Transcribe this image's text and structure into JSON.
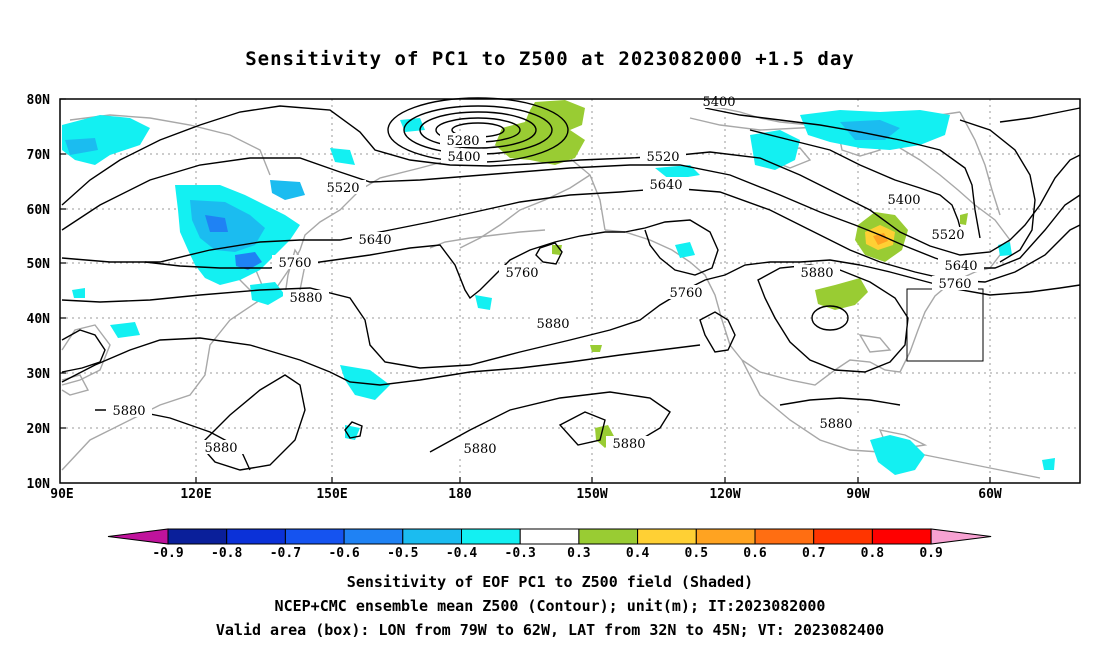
{
  "title": "Sensitivity of PC1 to Z500 at 2023082000 +1.5 day",
  "lat_ticks": [
    "80N",
    "70N",
    "60N",
    "50N",
    "40N",
    "30N",
    "20N",
    "10N"
  ],
  "lon_ticks": [
    "90E",
    "120E",
    "150E",
    "180",
    "150W",
    "120W",
    "90W",
    "60W"
  ],
  "contour_labels": [
    "5400",
    "5280",
    "5400",
    "5520",
    "5520",
    "5640",
    "5640",
    "5400",
    "5520",
    "5640",
    "5760",
    "5760",
    "5760",
    "5880",
    "5880",
    "5760",
    "5880",
    "5880",
    "5880",
    "5880",
    "5880",
    "5880"
  ],
  "colorbar": {
    "labels": [
      "-0.9",
      "-0.8",
      "-0.7",
      "-0.6",
      "-0.5",
      "-0.4",
      "-0.3",
      "0.3",
      "0.4",
      "0.5",
      "0.6",
      "0.7",
      "0.8",
      "0.9"
    ],
    "colors": [
      "#c0139c",
      "#0a1f9a",
      "#0b31d8",
      "#1553f0",
      "#1f82f4",
      "#1bbcf0",
      "#13f0f2",
      "#ffffff",
      "#99cc33",
      "#ffd034",
      "#ffa321",
      "#ff6e12",
      "#ff3500",
      "#ff0000",
      "#f7a2d2"
    ]
  },
  "captions": {
    "line1": "Sensitivity of EOF PC1 to Z500 field (Shaded)",
    "line2": "NCEP+CMC ensemble mean Z500 (Contour); unit(m); IT:2023082000",
    "line3": "Valid area (box): LON from 79W to 62W, LAT from 32N to 45N; VT: 2023082400"
  }
}
